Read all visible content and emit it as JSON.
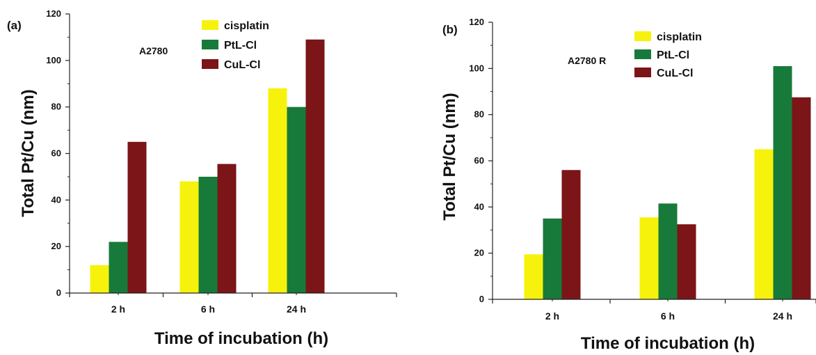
{
  "chart_data": [
    {
      "panel": "(a)",
      "type": "bar",
      "annotation": "A2780",
      "categories": [
        "2 h",
        "6 h",
        "24 h"
      ],
      "series": [
        {
          "name": "cisplatin",
          "color": "#f7f20c",
          "values": [
            12,
            48,
            88
          ]
        },
        {
          "name": "PtL-Cl",
          "color": "#177a3a",
          "values": [
            22,
            50,
            80
          ]
        },
        {
          "name": "CuL-Cl",
          "color": "#7b1518",
          "values": [
            65,
            55.5,
            109
          ]
        }
      ],
      "xlabel": "Time of incubation (h)",
      "ylabel": "Total Pt/Cu (nm)",
      "ylim": [
        0,
        120
      ],
      "yticks": [
        0,
        20,
        40,
        60,
        80,
        100,
        120
      ],
      "legend": "top-center",
      "grid": false
    },
    {
      "panel": "(b)",
      "type": "bar",
      "annotation": "A2780 R",
      "categories": [
        "2 h",
        "6 h",
        "24 h"
      ],
      "series": [
        {
          "name": "cisplatin",
          "color": "#f7f20c",
          "values": [
            19.5,
            35.5,
            65
          ]
        },
        {
          "name": "PtL-Cl",
          "color": "#177a3a",
          "values": [
            35,
            41.5,
            101
          ]
        },
        {
          "name": "CuL-Cl",
          "color": "#7b1518",
          "values": [
            56,
            32.5,
            87.5
          ]
        }
      ],
      "xlabel": "Time of incubation (h)",
      "ylabel": "Total Pt/Cu (nm)",
      "ylim": [
        0,
        120
      ],
      "yticks": [
        0,
        20,
        40,
        60,
        80,
        100,
        120
      ],
      "legend": "top-center",
      "grid": false
    }
  ]
}
